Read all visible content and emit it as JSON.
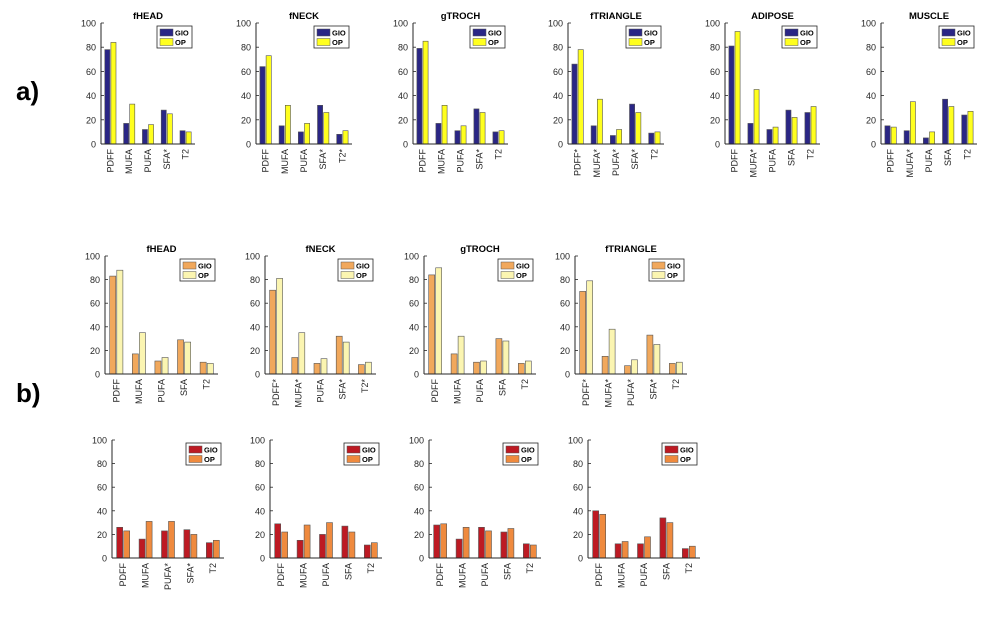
{
  "panel_labels": {
    "a": "a)",
    "b": "b)"
  },
  "colors": {
    "a_gio": "#2a2685",
    "a_op": "#ffff1e",
    "b_gio": "#f1a85c",
    "b_op": "#fbf5b1",
    "c_gio": "#bd1a23",
    "c_op": "#ef8a3e"
  },
  "chart_data": [
    {
      "id": "a1",
      "type": "bar",
      "title": "fHEAD",
      "categories": [
        "PDFF",
        "MUFA",
        "PUFA",
        "SFA*",
        "T2"
      ],
      "ylim": [
        0,
        100
      ],
      "yticks": [
        0,
        20,
        40,
        60,
        80,
        100
      ],
      "legend_position": "top-right",
      "series": [
        {
          "name": "GIO",
          "values": [
            78,
            17,
            12,
            28,
            11
          ]
        },
        {
          "name": "OP",
          "values": [
            84,
            33,
            16,
            25,
            10
          ]
        }
      ]
    },
    {
      "id": "a2",
      "type": "bar",
      "title": "fNECK",
      "categories": [
        "PDFF",
        "MUFA",
        "PUFA",
        "SFA*",
        "T2*"
      ],
      "ylim": [
        0,
        100
      ],
      "yticks": [
        0,
        20,
        40,
        60,
        80,
        100
      ],
      "legend_position": "top-right",
      "series": [
        {
          "name": "GIO",
          "values": [
            64,
            15,
            10,
            32,
            8
          ]
        },
        {
          "name": "OP",
          "values": [
            73,
            32,
            17,
            26,
            11
          ]
        }
      ]
    },
    {
      "id": "a3",
      "type": "bar",
      "title": "gTROCH",
      "categories": [
        "PDFF",
        "MUFA",
        "PUFA",
        "SFA*",
        "T2"
      ],
      "ylim": [
        0,
        100
      ],
      "yticks": [
        0,
        20,
        40,
        60,
        80,
        100
      ],
      "legend_position": "top-right",
      "series": [
        {
          "name": "GIO",
          "values": [
            79,
            17,
            11,
            29,
            10
          ]
        },
        {
          "name": "OP",
          "values": [
            85,
            32,
            15,
            26,
            11
          ]
        }
      ]
    },
    {
      "id": "a4",
      "type": "bar",
      "title": "fTRIANGLE",
      "categories": [
        "PDFF*",
        "MUFA*",
        "PUFA*",
        "SFA*",
        "T2"
      ],
      "ylim": [
        0,
        100
      ],
      "yticks": [
        0,
        20,
        40,
        60,
        80,
        100
      ],
      "legend_position": "top-right",
      "series": [
        {
          "name": "GIO",
          "values": [
            66,
            15,
            7,
            33,
            9
          ]
        },
        {
          "name": "OP",
          "values": [
            78,
            37,
            12,
            26,
            10
          ]
        }
      ]
    },
    {
      "id": "a5",
      "type": "bar",
      "title": "ADIPOSE",
      "categories": [
        "PDFF",
        "MUFA*",
        "PUFA",
        "SFA",
        "T2"
      ],
      "ylim": [
        0,
        100
      ],
      "yticks": [
        0,
        20,
        40,
        60,
        80,
        100
      ],
      "legend_position": "top-right",
      "series": [
        {
          "name": "GIO",
          "values": [
            81,
            17,
            12,
            28,
            26
          ]
        },
        {
          "name": "OP",
          "values": [
            93,
            45,
            14,
            22,
            31
          ]
        }
      ]
    },
    {
      "id": "a6",
      "type": "bar",
      "title": "MUSCLE",
      "categories": [
        "PDFF",
        "MUFA*",
        "PUFA",
        "SFA",
        "T2"
      ],
      "ylim": [
        0,
        100
      ],
      "yticks": [
        0,
        20,
        40,
        60,
        80,
        100
      ],
      "legend_position": "top-right",
      "series": [
        {
          "name": "GIO",
          "values": [
            15,
            11,
            5,
            37,
            24
          ]
        },
        {
          "name": "OP",
          "values": [
            14,
            35,
            10,
            31,
            27
          ]
        }
      ]
    },
    {
      "id": "b1",
      "type": "bar",
      "title": "fHEAD",
      "categories": [
        "PDFF",
        "MUFA",
        "PUFA",
        "SFA",
        "T2"
      ],
      "ylim": [
        0,
        100
      ],
      "yticks": [
        0,
        20,
        40,
        60,
        80,
        100
      ],
      "legend_position": "top-right",
      "series": [
        {
          "name": "GIO",
          "values": [
            83,
            17,
            11,
            29,
            10
          ]
        },
        {
          "name": "OP",
          "values": [
            88,
            35,
            14,
            27,
            9
          ]
        }
      ]
    },
    {
      "id": "b2",
      "type": "bar",
      "title": "fNECK",
      "categories": [
        "PDFF*",
        "MUFA*",
        "PUFA",
        "SFA*",
        "T2*"
      ],
      "ylim": [
        0,
        100
      ],
      "yticks": [
        0,
        20,
        40,
        60,
        80,
        100
      ],
      "legend_position": "top-right",
      "series": [
        {
          "name": "GIO",
          "values": [
            71,
            14,
            9,
            32,
            8
          ]
        },
        {
          "name": "OP",
          "values": [
            81,
            35,
            13,
            27,
            10
          ]
        }
      ]
    },
    {
      "id": "b3",
      "type": "bar",
      "title": "gTROCH",
      "categories": [
        "PDFF",
        "MUFA",
        "PUFA",
        "SFA",
        "T2"
      ],
      "ylim": [
        0,
        100
      ],
      "yticks": [
        0,
        20,
        40,
        60,
        80,
        100
      ],
      "legend_position": "top-right",
      "series": [
        {
          "name": "GIO",
          "values": [
            84,
            17,
            10,
            30,
            9
          ]
        },
        {
          "name": "OP",
          "values": [
            90,
            32,
            11,
            28,
            11
          ]
        }
      ]
    },
    {
      "id": "b4",
      "type": "bar",
      "title": "fTRIANGLE",
      "categories": [
        "PDFF*",
        "MUFA*",
        "PUFA*",
        "SFA*",
        "T2"
      ],
      "ylim": [
        0,
        100
      ],
      "yticks": [
        0,
        20,
        40,
        60,
        80,
        100
      ],
      "legend_position": "top-right",
      "series": [
        {
          "name": "GIO",
          "values": [
            70,
            15,
            7,
            33,
            9
          ]
        },
        {
          "name": "OP",
          "values": [
            79,
            38,
            12,
            25,
            10
          ]
        }
      ]
    },
    {
      "id": "c1",
      "type": "bar",
      "title": "",
      "categories": [
        "PDFF",
        "MUFA",
        "PUFA*",
        "SFA*",
        "T2"
      ],
      "ylim": [
        0,
        100
      ],
      "yticks": [
        0,
        20,
        40,
        60,
        80,
        100
      ],
      "legend_position": "top-right",
      "series": [
        {
          "name": "GIO",
          "values": [
            26,
            16,
            23,
            24,
            13
          ]
        },
        {
          "name": "OP",
          "values": [
            23,
            31,
            31,
            20,
            15
          ]
        }
      ]
    },
    {
      "id": "c2",
      "type": "bar",
      "title": "",
      "categories": [
        "PDFF",
        "MUFA",
        "PUFA",
        "SFA",
        "T2"
      ],
      "ylim": [
        0,
        100
      ],
      "yticks": [
        0,
        20,
        40,
        60,
        80,
        100
      ],
      "legend_position": "top-right",
      "series": [
        {
          "name": "GIO",
          "values": [
            29,
            15,
            20,
            27,
            11
          ]
        },
        {
          "name": "OP",
          "values": [
            22,
            28,
            30,
            22,
            13
          ]
        }
      ]
    },
    {
      "id": "c3",
      "type": "bar",
      "title": "",
      "categories": [
        "PDFF",
        "MUFA",
        "PUFA",
        "SFA",
        "T2"
      ],
      "ylim": [
        0,
        100
      ],
      "yticks": [
        0,
        20,
        40,
        60,
        80,
        100
      ],
      "legend_position": "top-right",
      "series": [
        {
          "name": "GIO",
          "values": [
            28,
            16,
            26,
            22,
            12
          ]
        },
        {
          "name": "OP",
          "values": [
            29,
            26,
            23,
            25,
            11
          ]
        }
      ]
    },
    {
      "id": "c4",
      "type": "bar",
      "title": "",
      "categories": [
        "PDFF",
        "MUFA",
        "PUFA",
        "SFA",
        "T2"
      ],
      "ylim": [
        0,
        100
      ],
      "yticks": [
        0,
        20,
        40,
        60,
        80,
        100
      ],
      "legend_position": "top-right",
      "series": [
        {
          "name": "GIO",
          "values": [
            40,
            12,
            12,
            34,
            8
          ]
        },
        {
          "name": "OP",
          "values": [
            37,
            14,
            18,
            30,
            10
          ]
        }
      ]
    }
  ]
}
